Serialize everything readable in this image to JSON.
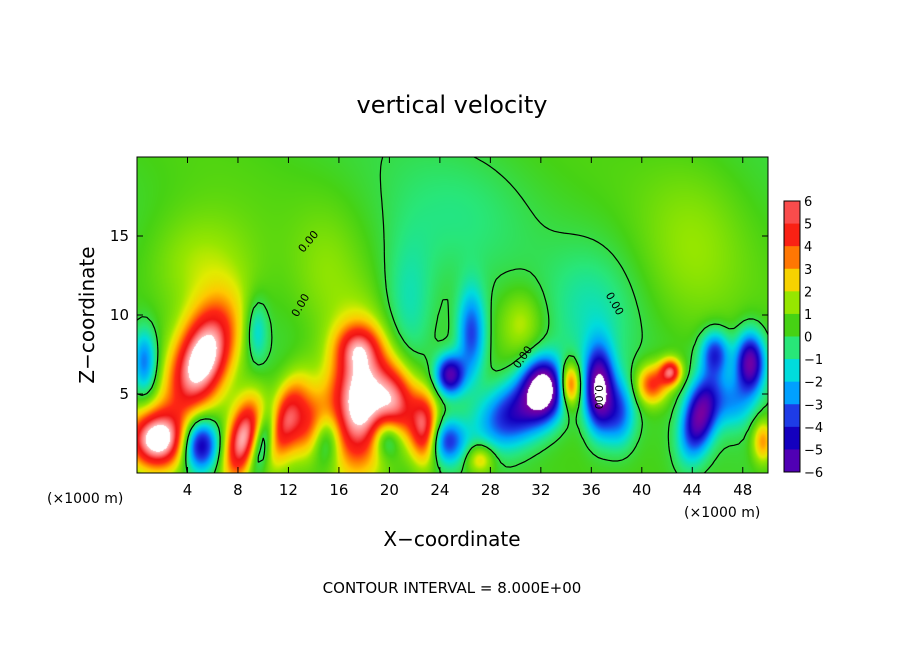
{
  "chart_data": {
    "type": "heatmap",
    "title": "vertical velocity",
    "xlabel": "X−coordinate",
    "ylabel": "Z−coordinate",
    "x_unit_left": "(×1000 m)",
    "x_unit_right": "(×1000 m)",
    "xlim": [
      0,
      50
    ],
    "ylim": [
      0,
      20
    ],
    "x_ticks": [
      4,
      8,
      12,
      16,
      20,
      24,
      28,
      32,
      36,
      40,
      44,
      48
    ],
    "y_ticks": [
      5,
      10,
      15
    ],
    "colorbar": {
      "ticks": [
        6,
        5,
        4,
        3,
        2,
        1,
        0,
        -1,
        -2,
        -3,
        -4,
        -5,
        -6
      ],
      "tick_labels": [
        "6",
        "5",
        "4",
        "3",
        "2",
        "1",
        "0",
        "−1",
        "−2",
        "−3",
        "−4",
        "−5",
        "−6"
      ],
      "range": [
        -6,
        6
      ]
    },
    "contour_label": "0.00",
    "footer": "CONTOUR INTERVAL = 8.000E+00",
    "blobs": [
      {
        "x": 5.2,
        "z": 7.2,
        "amp": 7.5,
        "sx": 1.5,
        "sz": 2.6,
        "rot": 0.5
      },
      {
        "x": 1.6,
        "z": 2.1,
        "amp": 7.0,
        "sx": 1.6,
        "sz": 1.3,
        "rot": 0
      },
      {
        "x": 5.0,
        "z": 1.8,
        "amp": -6.0,
        "sx": 1.0,
        "sz": 1.2,
        "rot": 0
      },
      {
        "x": 8.4,
        "z": 2.2,
        "amp": 6.0,
        "sx": 0.9,
        "sz": 1.9,
        "rot": 0.3
      },
      {
        "x": 10.0,
        "z": 2.0,
        "amp": -3.5,
        "sx": 0.6,
        "sz": 1.5,
        "rot": 0.3
      },
      {
        "x": 11.8,
        "z": 3.4,
        "amp": 5.0,
        "sx": 1.0,
        "sz": 2.0,
        "rot": 0.4
      },
      {
        "x": 13.8,
        "z": 3.0,
        "amp": 3.0,
        "sx": 1.0,
        "sz": 1.5,
        "rot": 0.3
      },
      {
        "x": 17.6,
        "z": 4.5,
        "amp": 7.2,
        "sx": 1.7,
        "sz": 3.0,
        "rot": 0.05
      },
      {
        "x": 17.5,
        "z": 8.0,
        "amp": 2.5,
        "sx": 1.2,
        "sz": 1.0,
        "rot": 0
      },
      {
        "x": 20.6,
        "z": 4.5,
        "amp": 4.5,
        "sx": 1.2,
        "sz": 1.7,
        "rot": -0.2
      },
      {
        "x": 22.8,
        "z": 2.8,
        "amp": 5.0,
        "sx": 0.8,
        "sz": 1.6,
        "rot": 0
      },
      {
        "x": 19.8,
        "z": 2.2,
        "amp": -3.0,
        "sx": 0.8,
        "sz": 0.9,
        "rot": 0
      },
      {
        "x": 15.0,
        "z": 2.2,
        "amp": -2.5,
        "sx": 0.8,
        "sz": 1.2,
        "rot": 0
      },
      {
        "x": 24.8,
        "z": 6.2,
        "amp": -6.0,
        "sx": 0.8,
        "sz": 0.9,
        "rot": 0
      },
      {
        "x": 26.5,
        "z": 8.8,
        "amp": -4.0,
        "sx": 0.8,
        "sz": 2.0,
        "rot": 0
      },
      {
        "x": 24.6,
        "z": 2.0,
        "amp": -4.0,
        "sx": 1.0,
        "sz": 1.0,
        "rot": 0
      },
      {
        "x": 27.2,
        "z": 0.9,
        "amp": 2.5,
        "sx": 0.8,
        "sz": 0.7,
        "rot": 0
      },
      {
        "x": 30.0,
        "z": 3.8,
        "amp": -5.0,
        "sx": 2.2,
        "sz": 1.4,
        "rot": -0.4
      },
      {
        "x": 32.2,
        "z": 5.4,
        "amp": -7.0,
        "sx": 1.1,
        "sz": 1.3,
        "rot": 0
      },
      {
        "x": 34.3,
        "z": 5.6,
        "amp": 4.8,
        "sx": 0.6,
        "sz": 1.0,
        "rot": 0
      },
      {
        "x": 36.6,
        "z": 5.3,
        "amp": -7.0,
        "sx": 0.8,
        "sz": 1.8,
        "rot": 0
      },
      {
        "x": 38.2,
        "z": 3.8,
        "amp": -3.5,
        "sx": 0.9,
        "sz": 1.5,
        "rot": 0
      },
      {
        "x": 40.8,
        "z": 5.6,
        "amp": 4.0,
        "sx": 0.9,
        "sz": 0.9,
        "rot": 0
      },
      {
        "x": 42.3,
        "z": 6.4,
        "amp": 5.0,
        "sx": 0.6,
        "sz": 0.6,
        "rot": 0
      },
      {
        "x": 44.6,
        "z": 3.6,
        "amp": -6.5,
        "sx": 0.9,
        "sz": 1.8,
        "rot": 0.3
      },
      {
        "x": 45.8,
        "z": 7.6,
        "amp": -4.0,
        "sx": 0.8,
        "sz": 1.0,
        "rot": 0
      },
      {
        "x": 48.6,
        "z": 7.0,
        "amp": -6.5,
        "sx": 0.8,
        "sz": 1.3,
        "rot": 0
      },
      {
        "x": 47.2,
        "z": 4.5,
        "amp": -2.5,
        "sx": 1.2,
        "sz": 1.2,
        "rot": 0
      },
      {
        "x": 49.6,
        "z": 2.0,
        "amp": 3.0,
        "sx": 0.6,
        "sz": 1.0,
        "rot": 0
      },
      {
        "x": 0.6,
        "z": 7.0,
        "amp": -3.5,
        "sx": 0.7,
        "sz": 1.5,
        "rot": 0
      },
      {
        "x": 30.5,
        "z": 9.5,
        "amp": 1.5,
        "sx": 1.2,
        "sz": 1.5,
        "rot": 0
      },
      {
        "x": 9.5,
        "z": 9.0,
        "amp": -2.0,
        "sx": 0.6,
        "sz": 1.4,
        "rot": 0
      },
      {
        "x": 21.5,
        "z": 10.5,
        "amp": -1.6,
        "sx": 1.5,
        "sz": 3.0,
        "rot": 0
      },
      {
        "x": 36.0,
        "z": 10.0,
        "amp": -1.2,
        "sx": 2.5,
        "sz": 3.0,
        "rot": 0
      },
      {
        "x": 44.0,
        "z": 14.0,
        "amp": 0.9,
        "sx": 3.0,
        "sz": 4.0,
        "rot": 0
      },
      {
        "x": 5.0,
        "z": 13.0,
        "amp": 1.5,
        "sx": 3.0,
        "sz": 2.5,
        "rot": 0
      },
      {
        "x": 25.0,
        "z": 16.0,
        "amp": -0.7,
        "sx": 4.0,
        "sz": 3.0,
        "rot": 0
      },
      {
        "x": 15.0,
        "z": 12.5,
        "amp": 0.8,
        "sx": 2.0,
        "sz": 3.0,
        "rot": 0
      }
    ]
  }
}
